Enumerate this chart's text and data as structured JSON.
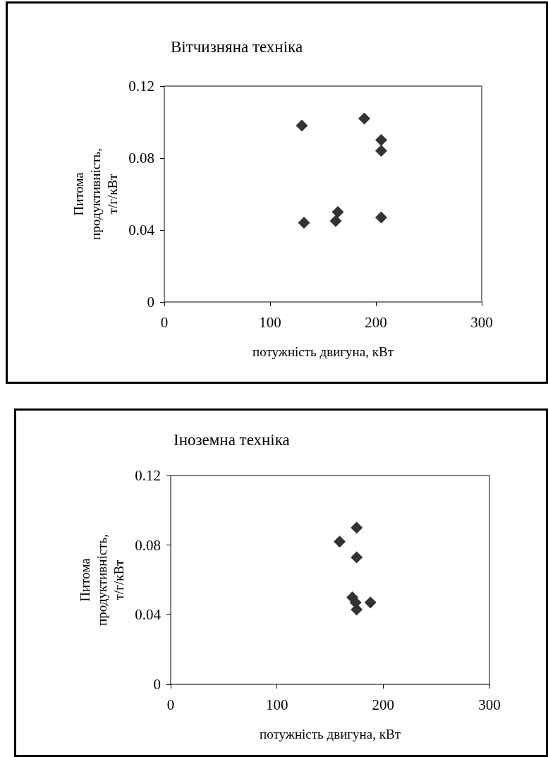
{
  "chart_data": [
    {
      "type": "scatter",
      "title": "Вітчизняна техніка",
      "xlabel": "потужність двигуна, кВт",
      "ylabel": "Питома продуктивність, т/г/кВт",
      "color": "#333333",
      "marker": "diamond",
      "grid": false,
      "x": [
        130,
        189,
        205,
        205,
        132,
        164,
        162,
        205
      ],
      "values": [
        0.098,
        0.102,
        0.09,
        0.084,
        0.044,
        0.05,
        0.045,
        0.047
      ],
      "xlim": [
        0,
        300
      ],
      "xticks": [
        0,
        100,
        200,
        300
      ],
      "ylim": [
        0,
        0.12
      ],
      "yticks": [
        0,
        0.04,
        0.08,
        0.12
      ]
    },
    {
      "type": "scatter",
      "title": "Іноземна техніка",
      "xlabel": "потужність двигуна, кВт",
      "ylabel": "Питома продуктивність, т/г/кВт",
      "color": "#333333",
      "marker": "diamond",
      "grid": false,
      "x": [
        175,
        159,
        175,
        171,
        174,
        175,
        188
      ],
      "values": [
        0.09,
        0.082,
        0.073,
        0.05,
        0.047,
        0.043,
        0.047
      ],
      "xlim": [
        0,
        300
      ],
      "xticks": [
        0,
        100,
        200,
        300
      ],
      "ylim": [
        0,
        0.12
      ],
      "yticks": [
        0,
        0.04,
        0.08,
        0.12
      ]
    }
  ]
}
